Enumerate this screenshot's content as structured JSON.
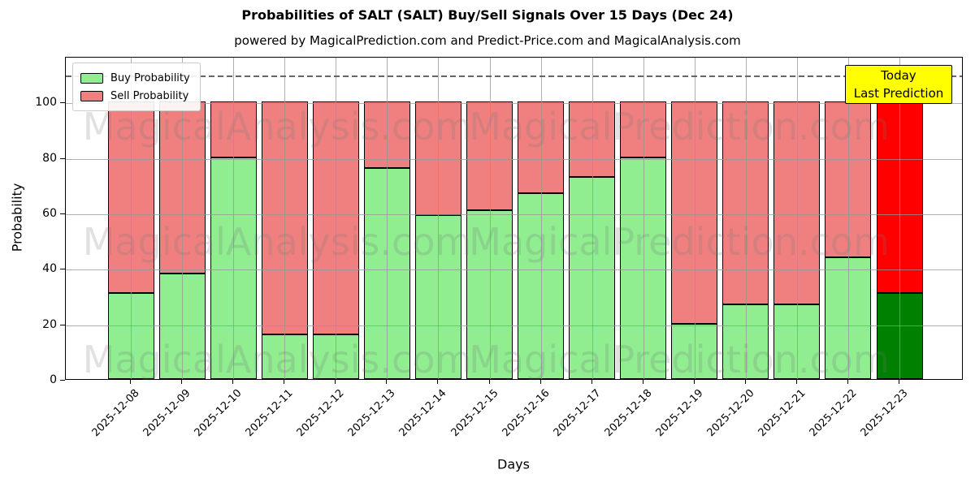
{
  "title": "Probabilities of SALT (SALT) Buy/Sell Signals Over 15 Days (Dec 24)",
  "subtitle": "powered by MagicalPrediction.com and Predict-Price.com and MagicalAnalysis.com",
  "legend": [
    {
      "label": "Buy Probability",
      "color": "#90EE90"
    },
    {
      "label": "Sell Probability",
      "color": "#F08080"
    }
  ],
  "annotation_box": {
    "line1": "Today",
    "line2": "Last Prediction",
    "bg": "#FFFF00",
    "border": "#000000"
  },
  "watermarks": {
    "left_text": "MagicalAnalysis.com",
    "right_text": "MagicalPrediction.com"
  },
  "axes": {
    "xlabel": "Days",
    "ylabel": "Probability",
    "yticks": [
      0,
      20,
      40,
      60,
      80,
      100
    ],
    "ylim": [
      0,
      116.5
    ],
    "dashed_line_y": 110,
    "grid": true
  },
  "chart_data": {
    "type": "bar",
    "stacked": true,
    "title": "Probabilities of SALT (SALT) Buy/Sell Signals Over 15 Days (Dec 24)",
    "xlabel": "Days",
    "ylabel": "Probability",
    "ylim": [
      0,
      116.5
    ],
    "legend_position": "upper left",
    "grid": true,
    "categories": [
      "2025-12-08",
      "2025-12-09",
      "2025-12-10",
      "2025-12-11",
      "2025-12-12",
      "2025-12-13",
      "2025-12-14",
      "2025-12-15",
      "2025-12-16",
      "2025-12-17",
      "2025-12-18",
      "2025-12-19",
      "2025-12-20",
      "2025-12-21",
      "2025-12-22",
      "2025-12-23"
    ],
    "series": [
      {
        "name": "Buy Probability",
        "color": "#90EE90",
        "today_color": "#008000",
        "values": [
          31,
          38,
          80,
          16,
          16,
          76,
          59,
          61,
          67,
          73,
          80,
          20,
          27,
          27,
          44,
          31
        ]
      },
      {
        "name": "Sell Probability",
        "color": "#F08080",
        "today_color": "#FF0000",
        "values": [
          69,
          62,
          20,
          84,
          84,
          24,
          41,
          39,
          33,
          27,
          20,
          80,
          73,
          73,
          56,
          69
        ]
      }
    ],
    "today_index": 15
  }
}
